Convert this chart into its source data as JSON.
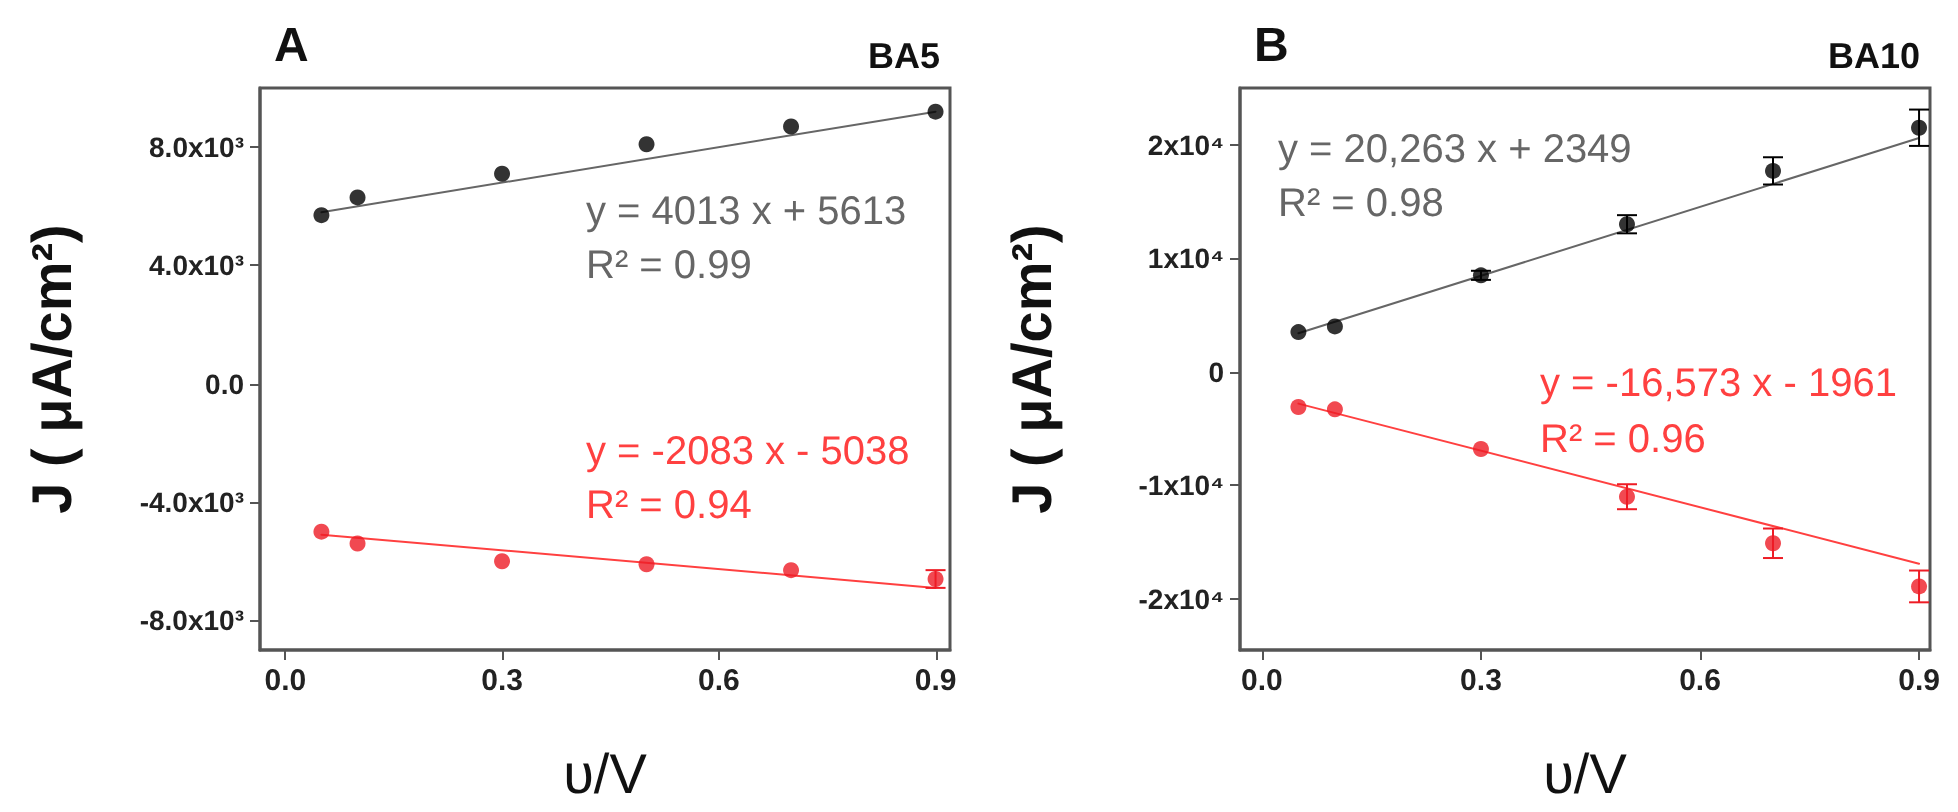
{
  "chart_data": [
    {
      "type": "scatter",
      "title": "A",
      "subtitle": "BA5",
      "xlabel": "υ/V",
      "ylabel": "J ( μA/cm²)",
      "xlim": [
        -0.035,
        0.92
      ],
      "ylim": [
        -9000,
        10000
      ],
      "xticks": [
        {
          "value": 0,
          "label": "0.0"
        },
        0.3,
        0.6,
        0.9
      ],
      "yticks": [
        {
          "value": -8000,
          "label": "-8.0x10³"
        },
        {
          "value": -4000,
          "label": "-4.0x10³"
        },
        {
          "value": 0,
          "label": "0.0"
        },
        {
          "value": 4000,
          "label": "4.0x10³"
        },
        {
          "value": 8000,
          "label": "8.0x10³"
        }
      ],
      "grid": false,
      "marker": "circle",
      "series": [
        {
          "color": "#000000",
          "x": [
            0.05,
            0.1,
            0.3,
            0.5,
            0.7,
            0.9
          ],
          "values": [
            5700,
            6300,
            7100,
            8100,
            8700,
            9200
          ]
        },
        {
          "color": "#ee1c25",
          "x": [
            0.05,
            0.1,
            0.3,
            0.5,
            0.7,
            0.9
          ],
          "values": [
            -5000,
            -5400,
            -6000,
            -6100,
            -6300,
            -6600
          ],
          "errors": [
            null,
            null,
            null,
            null,
            null,
            300
          ]
        },
        {
          "type": "line",
          "marker": "none",
          "color": "#666666",
          "x": [
            0.05,
            0.9
          ],
          "values": [
            5800,
            9200
          ]
        },
        {
          "type": "line",
          "marker": "none",
          "color": "#ff4040",
          "x": [
            0.05,
            0.9
          ],
          "values": [
            -5100,
            -6900
          ]
        }
      ],
      "annotations": [
        "y = 4013 x + 5613",
        "R² = 0.99",
        "y = -2083 x - 5038",
        "R² = 0.94"
      ]
    },
    {
      "type": "scatter",
      "title": "B",
      "subtitle": "BA10",
      "xlabel": "υ/V",
      "ylabel": "J ( μA/cm²)",
      "xlim": [
        -0.03,
        0.915
      ],
      "ylim": [
        -24500,
        25000
      ],
      "xticks": [
        {
          "value": 0,
          "label": "0.0"
        },
        0.3,
        0.6,
        0.9
      ],
      "yticks": [
        {
          "value": -20000,
          "label": "-2x10⁴"
        },
        {
          "value": -10000,
          "label": "-1x10⁴"
        },
        0,
        {
          "value": 10000,
          "label": "1x10⁴"
        },
        {
          "value": 20000,
          "label": "2x10⁴"
        }
      ],
      "grid": false,
      "marker": "circle",
      "series": [
        {
          "color": "#000000",
          "x": [
            0.05,
            0.1,
            0.3,
            0.5,
            0.7,
            0.9
          ],
          "values": [
            3500,
            4000,
            8500,
            13000,
            17700,
            21500
          ],
          "errors": [
            null,
            null,
            400,
            800,
            1200,
            1600
          ]
        },
        {
          "color": "#ee1c25",
          "x": [
            0.05,
            0.1,
            0.3,
            0.5,
            0.7,
            0.9
          ],
          "values": [
            -3100,
            -3300,
            -6800,
            -11000,
            -15100,
            -18900
          ],
          "errors": [
            null,
            null,
            null,
            1100,
            1300,
            1400
          ]
        },
        {
          "type": "line",
          "marker": "none",
          "color": "#666666",
          "x": [
            0.05,
            0.9
          ],
          "values": [
            3400,
            20600
          ]
        },
        {
          "type": "line",
          "marker": "none",
          "color": "#ff4040",
          "x": [
            0.05,
            0.9
          ],
          "values": [
            -2800,
            -16900
          ]
        }
      ],
      "annotations": [
        "y = 20,263 x + 2349",
        "R² = 0.98",
        "y = -16,573 x - 1961",
        "R² = 0.96"
      ]
    }
  ]
}
